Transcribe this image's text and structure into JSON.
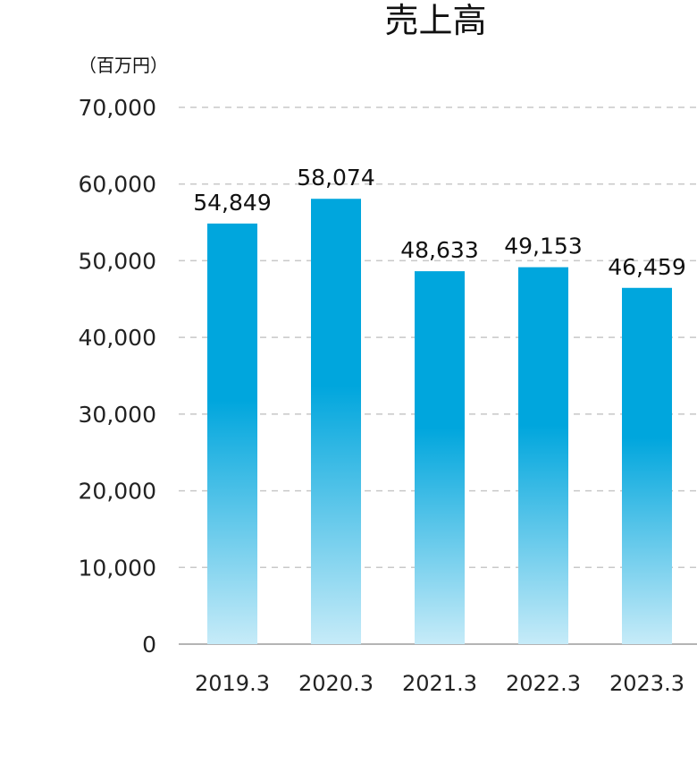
{
  "chart_data": {
    "type": "bar",
    "title": "売上高",
    "unit": "（百万円）",
    "categories": [
      "2019.3",
      "2020.3",
      "2021.3",
      "2022.3",
      "2023.3"
    ],
    "values": [
      54849,
      58074,
      48633,
      49153,
      46459
    ],
    "value_labels": [
      "54,849",
      "58,074",
      "48,633",
      "49,153",
      "46,459"
    ],
    "yticks": [
      "0",
      "10,000",
      "20,000",
      "30,000",
      "40,000",
      "50,000",
      "60,000",
      "70,000"
    ],
    "ylim": [
      0,
      70000
    ],
    "grid": true,
    "bar_color_top": "#00a6dd",
    "bar_color_bottom": "#c6ebf8",
    "grid_color": "#c8c8c8",
    "axis_color": "#b4b4b4"
  }
}
